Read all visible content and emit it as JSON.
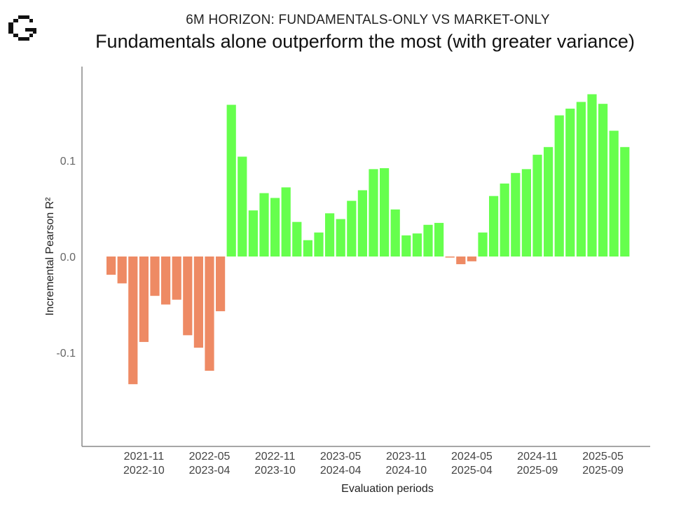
{
  "header": {
    "subtitle": "6M HORIZON: FUNDAMENTALS-ONLY VS MARKET-ONLY",
    "title": "Fundamentals alone outperform the most (with greater variance)"
  },
  "chart_data": {
    "type": "bar",
    "title": "Fundamentals alone outperform the most (with greater variance)",
    "subtitle": "6M HORIZON: FUNDAMENTALS-ONLY VS MARKET-ONLY",
    "xlabel": "Evaluation periods",
    "ylabel": "Incremental Pearson R²",
    "ylim": [
      -0.2,
      0.19
    ],
    "yticks": [
      {
        "value": 0.1,
        "label": "0.1"
      },
      {
        "value": 0.0,
        "label": "0.0"
      },
      {
        "value": -0.1,
        "label": "-0.1"
      }
    ],
    "xtick_labels": [
      {
        "index": 3,
        "line1": "2021-11",
        "line2": "2022-10"
      },
      {
        "index": 9,
        "line1": "2022-05",
        "line2": "2023-04"
      },
      {
        "index": 15,
        "line1": "2022-11",
        "line2": "2023-10"
      },
      {
        "index": 21,
        "line1": "2023-05",
        "line2": "2024-04"
      },
      {
        "index": 27,
        "line1": "2023-11",
        "line2": "2024-10"
      },
      {
        "index": 33,
        "line1": "2024-05",
        "line2": "2025-04"
      },
      {
        "index": 39,
        "line1": "2024-11",
        "line2": "2025-09"
      },
      {
        "index": 45,
        "line1": "2025-05",
        "line2": "2025-09"
      }
    ],
    "values": [
      -0.019,
      -0.028,
      -0.133,
      -0.089,
      -0.041,
      -0.05,
      -0.045,
      -0.082,
      -0.095,
      -0.119,
      -0.057,
      0.158,
      0.104,
      0.048,
      0.066,
      0.061,
      0.072,
      0.036,
      0.017,
      0.025,
      0.045,
      0.039,
      0.058,
      0.069,
      0.091,
      0.092,
      0.049,
      0.022,
      0.024,
      0.033,
      0.035,
      -0.001,
      -0.008,
      -0.005,
      0.025,
      0.063,
      0.076,
      0.087,
      0.091,
      0.106,
      0.114,
      0.147,
      0.154,
      0.161,
      0.169,
      0.159,
      0.131,
      0.114
    ],
    "colors": {
      "positive": "#66ff4d",
      "negative": "#ee8a64"
    },
    "grid": false,
    "legend": "none"
  }
}
